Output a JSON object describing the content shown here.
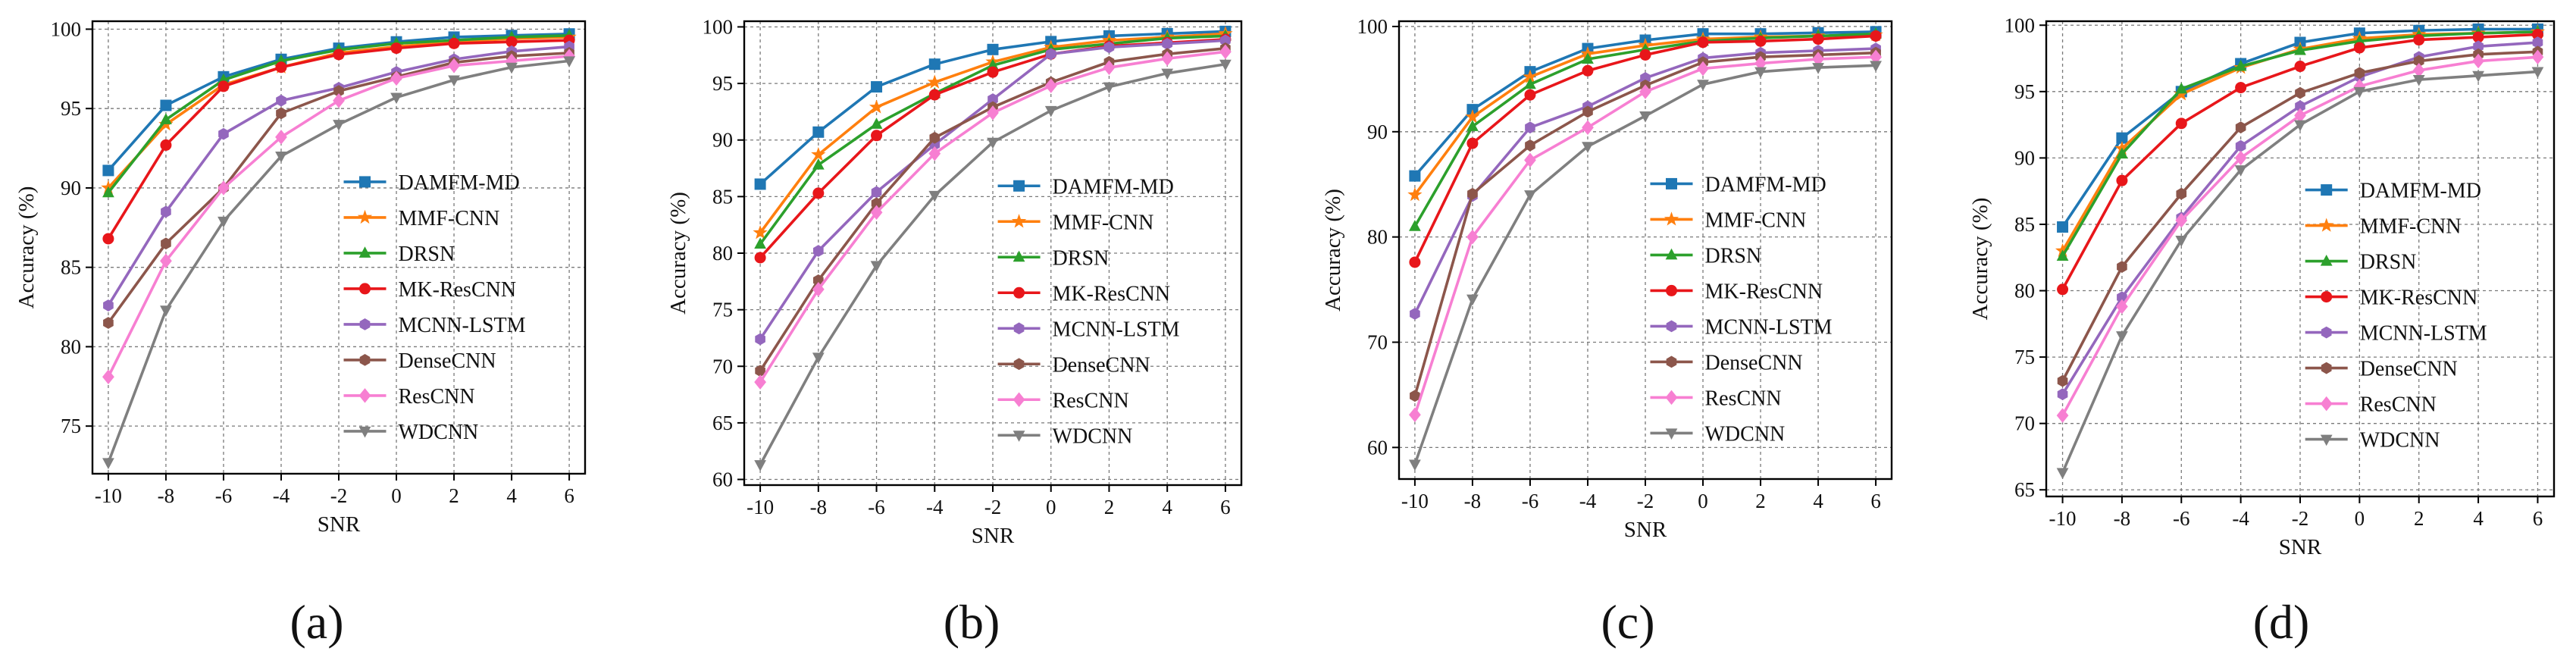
{
  "figure": {
    "panel_labels": [
      "(a)",
      "(b)",
      "(c)",
      "(d)"
    ]
  },
  "series_style": [
    {
      "name": "DAMFM-MD",
      "color": "#1f77b4",
      "marker": "square"
    },
    {
      "name": "MMF-CNN",
      "color": "#ff7f0e",
      "marker": "star"
    },
    {
      "name": "DRSN",
      "color": "#2ca02c",
      "marker": "triangle"
    },
    {
      "name": "MK-ResCNN",
      "color": "#e8161a",
      "marker": "circle"
    },
    {
      "name": "MCNN-LSTM",
      "color": "#9467bd",
      "marker": "hexagon"
    },
    {
      "name": "DenseCNN",
      "color": "#8c564b",
      "marker": "hexagon"
    },
    {
      "name": "ResCNN",
      "color": "#f77fd2",
      "marker": "diamond"
    },
    {
      "name": "WDCNN",
      "color": "#7f7f7f",
      "marker": "triangle-down"
    }
  ],
  "chart_data": [
    {
      "type": "line",
      "panel": "(a)",
      "xlabel": "SNR",
      "ylabel": "Accuracy (%)",
      "x": [
        -10,
        -8,
        -6,
        -4,
        -2,
        0,
        2,
        4,
        6
      ],
      "xlim": [
        -10,
        6
      ],
      "ylim": [
        72,
        100.5
      ],
      "yticks": [
        75,
        80,
        85,
        90,
        95,
        100
      ],
      "grid": true,
      "legend_position": "center-right",
      "series": [
        {
          "name": "DAMFM-MD",
          "values": [
            91.1,
            95.2,
            97.0,
            98.1,
            98.8,
            99.2,
            99.5,
            99.6,
            99.7
          ]
        },
        {
          "name": "MMF-CNN",
          "values": [
            90.0,
            94.0,
            96.5,
            97.6,
            98.5,
            98.9,
            99.2,
            99.4,
            99.5
          ]
        },
        {
          "name": "DRSN",
          "values": [
            89.7,
            94.3,
            96.8,
            98.0,
            98.7,
            99.1,
            99.3,
            99.5,
            99.6
          ]
        },
        {
          "name": "MK-ResCNN",
          "values": [
            86.8,
            92.7,
            96.4,
            97.6,
            98.4,
            98.8,
            99.1,
            99.2,
            99.3
          ]
        },
        {
          "name": "MCNN-LSTM",
          "values": [
            82.6,
            88.5,
            93.4,
            95.5,
            96.3,
            97.3,
            98.1,
            98.6,
            98.9
          ]
        },
        {
          "name": "DenseCNN",
          "values": [
            81.5,
            86.5,
            90.0,
            94.7,
            96.1,
            97.0,
            97.9,
            98.3,
            98.5
          ]
        },
        {
          "name": "ResCNN",
          "values": [
            78.1,
            85.4,
            90.0,
            93.2,
            95.5,
            96.9,
            97.7,
            98.0,
            98.3
          ]
        },
        {
          "name": "WDCNN",
          "values": [
            72.7,
            82.3,
            87.9,
            92.0,
            94.0,
            95.7,
            96.8,
            97.6,
            98.0
          ]
        }
      ]
    },
    {
      "type": "line",
      "panel": "(b)",
      "xlabel": "SNR",
      "ylabel": "Accuracy (%)",
      "x": [
        -10,
        -8,
        -6,
        -4,
        -2,
        0,
        2,
        4,
        6
      ],
      "xlim": [
        -10,
        6
      ],
      "ylim": [
        59.5,
        100.5
      ],
      "yticks": [
        60,
        65,
        70,
        75,
        80,
        85,
        90,
        95,
        100
      ],
      "grid": true,
      "legend_position": "center-right",
      "series": [
        {
          "name": "DAMFM-MD",
          "values": [
            86.1,
            90.7,
            94.7,
            96.7,
            98.0,
            98.7,
            99.2,
            99.4,
            99.6
          ]
        },
        {
          "name": "MMF-CNN",
          "values": [
            81.8,
            88.7,
            92.9,
            95.1,
            96.9,
            98.2,
            98.8,
            99.1,
            99.4
          ]
        },
        {
          "name": "DRSN",
          "values": [
            80.8,
            87.8,
            91.4,
            94.1,
            96.6,
            98.0,
            98.5,
            99.0,
            99.2
          ]
        },
        {
          "name": "MK-ResCNN",
          "values": [
            79.6,
            85.3,
            90.4,
            94.0,
            96.0,
            97.6,
            98.3,
            98.6,
            98.9
          ]
        },
        {
          "name": "MCNN-LSTM",
          "values": [
            72.4,
            80.2,
            85.4,
            89.6,
            93.6,
            97.6,
            98.2,
            98.5,
            98.8
          ]
        },
        {
          "name": "DenseCNN",
          "values": [
            69.6,
            77.6,
            84.4,
            90.2,
            92.9,
            95.1,
            96.9,
            97.6,
            98.1
          ]
        },
        {
          "name": "ResCNN",
          "values": [
            68.6,
            76.8,
            83.6,
            88.8,
            92.4,
            94.8,
            96.4,
            97.2,
            97.8
          ]
        },
        {
          "name": "WDCNN",
          "values": [
            61.3,
            70.8,
            78.9,
            85.1,
            89.8,
            92.6,
            94.7,
            95.9,
            96.7
          ]
        }
      ]
    },
    {
      "type": "line",
      "panel": "(c)",
      "xlabel": "SNR",
      "ylabel": "Accuracy (%)",
      "x": [
        -10,
        -8,
        -6,
        -4,
        -2,
        0,
        2,
        4,
        6
      ],
      "xlim": [
        -10,
        6
      ],
      "ylim": [
        57,
        100.5
      ],
      "yticks": [
        60,
        70,
        80,
        90,
        100
      ],
      "grid": true,
      "legend_position": "center-right",
      "series": [
        {
          "name": "DAMFM-MD",
          "values": [
            85.8,
            92.1,
            95.7,
            97.9,
            98.7,
            99.3,
            99.3,
            99.4,
            99.5
          ]
        },
        {
          "name": "MMF-CNN",
          "values": [
            84.0,
            91.4,
            95.2,
            97.4,
            98.2,
            98.8,
            99.0,
            99.1,
            99.2
          ]
        },
        {
          "name": "DRSN",
          "values": [
            81.0,
            90.5,
            94.5,
            96.9,
            97.8,
            98.6,
            98.9,
            99.1,
            99.3
          ]
        },
        {
          "name": "MK-ResCNN",
          "values": [
            77.6,
            88.9,
            93.5,
            95.8,
            97.3,
            98.5,
            98.6,
            98.8,
            99.1
          ]
        },
        {
          "name": "MCNN-LSTM",
          "values": [
            72.7,
            83.9,
            90.4,
            92.4,
            95.1,
            97.0,
            97.5,
            97.7,
            97.9
          ]
        },
        {
          "name": "DenseCNN",
          "values": [
            64.9,
            84.1,
            88.7,
            91.9,
            94.4,
            96.6,
            97.1,
            97.3,
            97.5
          ]
        },
        {
          "name": "ResCNN",
          "values": [
            63.1,
            80.0,
            87.3,
            90.4,
            93.8,
            96.0,
            96.5,
            96.9,
            97.1
          ]
        },
        {
          "name": "WDCNN",
          "values": [
            58.4,
            74.1,
            84.0,
            88.6,
            91.5,
            94.5,
            95.7,
            96.1,
            96.3
          ]
        }
      ]
    },
    {
      "type": "line",
      "panel": "(d)",
      "xlabel": "SNR",
      "ylabel": "Accuracy (%)",
      "x": [
        -10,
        -8,
        -6,
        -4,
        -2,
        0,
        2,
        4,
        6
      ],
      "xlim": [
        -10,
        6
      ],
      "ylim": [
        64.5,
        100.3
      ],
      "yticks": [
        65,
        70,
        75,
        80,
        85,
        90,
        95,
        100
      ],
      "grid": true,
      "legend_position": "center-right",
      "series": [
        {
          "name": "DAMFM-MD",
          "values": [
            84.8,
            91.5,
            95.0,
            97.1,
            98.7,
            99.4,
            99.6,
            99.7,
            99.7
          ]
        },
        {
          "name": "MMF-CNN",
          "values": [
            83.0,
            90.7,
            94.8,
            96.8,
            98.2,
            99.0,
            99.3,
            99.4,
            99.5
          ]
        },
        {
          "name": "DRSN",
          "values": [
            82.6,
            90.3,
            95.2,
            96.9,
            98.1,
            98.8,
            99.2,
            99.4,
            99.5
          ]
        },
        {
          "name": "MK-ResCNN",
          "values": [
            80.1,
            88.3,
            92.6,
            95.3,
            96.9,
            98.3,
            98.9,
            99.1,
            99.3
          ]
        },
        {
          "name": "MCNN-LSTM",
          "values": [
            72.2,
            79.5,
            85.5,
            90.9,
            93.9,
            96.1,
            97.6,
            98.4,
            98.7
          ]
        },
        {
          "name": "DenseCNN",
          "values": [
            73.2,
            81.8,
            87.3,
            92.3,
            94.9,
            96.4,
            97.3,
            97.8,
            98.0
          ]
        },
        {
          "name": "ResCNN",
          "values": [
            70.6,
            78.8,
            85.3,
            90.0,
            93.2,
            95.4,
            96.6,
            97.3,
            97.6
          ]
        },
        {
          "name": "WDCNN",
          "values": [
            66.3,
            76.6,
            83.8,
            89.1,
            92.5,
            95.0,
            95.9,
            96.2,
            96.5
          ]
        }
      ]
    }
  ]
}
